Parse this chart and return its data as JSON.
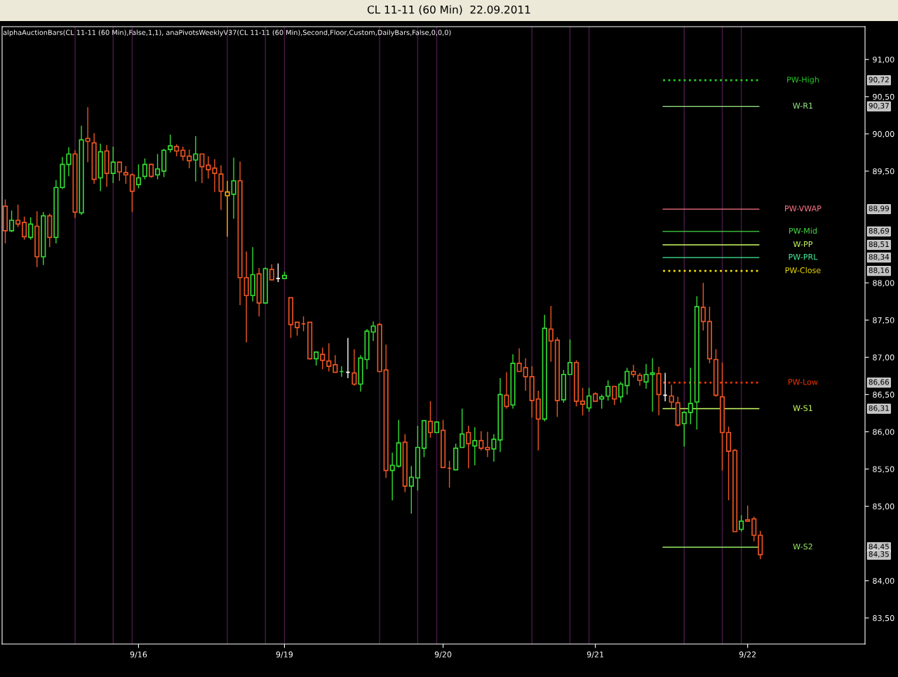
{
  "chart_data": {
    "type": "candlestick",
    "title": "CL 11-11 (60 Min)  22.09.2011",
    "subtitle": "alphaAuctionBars(CL 11-11 (60 Min),False,1,1), anaPivotsWeeklyV37(CL 11-11 (60 Min),Second,Floor,Custom,DailyBars,False,0,0,0)",
    "categories": [
      null,
      null,
      null,
      null,
      null,
      null,
      null,
      null,
      null,
      null,
      null,
      null,
      null,
      null,
      null,
      null,
      null,
      null,
      null,
      null,
      null,
      "9/16",
      null,
      null,
      null,
      null,
      null,
      null,
      null,
      null,
      null,
      null,
      null,
      null,
      null,
      null,
      null,
      null,
      null,
      null,
      null,
      null,
      null,
      null,
      "9/19",
      null,
      null,
      null,
      null,
      null,
      null,
      null,
      null,
      null,
      null,
      null,
      null,
      null,
      null,
      null,
      null,
      null,
      null,
      null,
      null,
      null,
      null,
      null,
      null,
      "9/20",
      null,
      null,
      null,
      null,
      null,
      null,
      null,
      null,
      null,
      null,
      null,
      null,
      null,
      null,
      null,
      null,
      null,
      null,
      null,
      null,
      null,
      null,
      null,
      "9/21",
      null,
      null,
      null,
      null,
      null,
      null,
      null,
      null,
      null,
      null,
      null,
      null,
      null,
      null,
      null,
      null,
      null,
      null,
      null,
      null,
      null,
      null,
      null,
      "9/22",
      null,
      null,
      null,
      null,
      null,
      null,
      null,
      null,
      null,
      null,
      null,
      null,
      null,
      null,
      null,
      null,
      null,
      null
    ],
    "annotations": [
      "90,72",
      "90,37",
      "88,99",
      "88,69",
      "88,51",
      "88,34",
      "88,16",
      "86,66",
      "86,31",
      "84,45",
      "84,35"
    ],
    "ohlc": [
      [
        89.03,
        89.12,
        88.53,
        88.7
      ],
      [
        88.7,
        88.97,
        88.68,
        88.84
      ],
      [
        88.84,
        89.05,
        88.75,
        88.79
      ],
      [
        88.81,
        88.89,
        88.58,
        88.62
      ],
      [
        88.61,
        88.88,
        88.58,
        88.79
      ],
      [
        88.76,
        88.96,
        88.21,
        88.35
      ],
      [
        88.35,
        88.95,
        88.24,
        88.9
      ],
      [
        88.9,
        88.93,
        88.48,
        88.61
      ],
      [
        88.61,
        89.38,
        88.53,
        89.28
      ],
      [
        89.28,
        89.69,
        89.26,
        89.59
      ],
      [
        89.59,
        89.82,
        89.43,
        89.73
      ],
      [
        89.73,
        89.78,
        88.87,
        88.95
      ],
      [
        88.94,
        90.11,
        88.91,
        89.92
      ],
      [
        89.94,
        90.36,
        89.62,
        89.9
      ],
      [
        89.88,
        90.01,
        89.33,
        89.39
      ],
      [
        89.41,
        89.87,
        89.23,
        89.76
      ],
      [
        89.77,
        89.85,
        89.29,
        89.47
      ],
      [
        89.47,
        89.83,
        89.34,
        89.62
      ],
      [
        89.62,
        89.63,
        89.37,
        89.49
      ],
      [
        89.48,
        89.57,
        89.33,
        89.45
      ],
      [
        89.45,
        89.47,
        88.95,
        89.23
      ],
      [
        89.32,
        89.59,
        89.27,
        89.41
      ],
      [
        89.43,
        89.67,
        89.39,
        89.59
      ],
      [
        89.59,
        89.6,
        89.41,
        89.43
      ],
      [
        89.45,
        89.73,
        89.39,
        89.53
      ],
      [
        89.5,
        89.8,
        89.42,
        89.78
      ],
      [
        89.79,
        89.99,
        89.75,
        89.84
      ],
      [
        89.83,
        89.86,
        89.7,
        89.77
      ],
      [
        89.78,
        89.83,
        89.64,
        89.7
      ],
      [
        89.7,
        89.79,
        89.54,
        89.64
      ],
      [
        89.65,
        89.97,
        89.36,
        89.73
      ],
      [
        89.73,
        89.73,
        89.34,
        89.56
      ],
      [
        89.58,
        89.7,
        89.4,
        89.52
      ],
      [
        89.54,
        89.66,
        89.22,
        89.47
      ],
      [
        89.46,
        89.58,
        88.98,
        89.23
      ],
      [
        89.22,
        89.37,
        88.62,
        89.17
      ],
      [
        89.19,
        89.68,
        88.86,
        89.37
      ],
      [
        89.37,
        89.63,
        87.7,
        88.07
      ],
      [
        88.07,
        88.42,
        87.2,
        87.83
      ],
      [
        87.83,
        88.48,
        87.75,
        88.11
      ],
      [
        88.12,
        88.2,
        87.55,
        87.73
      ],
      [
        87.73,
        88.21,
        87.72,
        88.19
      ],
      [
        88.18,
        88.25,
        88.04,
        88.04
      ],
      [
        88.06,
        88.26,
        88.01,
        88.06
      ],
      [
        88.06,
        88.15,
        88.06,
        88.1
      ],
      [
        87.8,
        87.8,
        87.26,
        87.44
      ],
      [
        87.47,
        87.48,
        87.29,
        87.4
      ],
      [
        87.45,
        87.55,
        87.35,
        87.45
      ],
      [
        87.47,
        87.47,
        86.97,
        86.98
      ],
      [
        86.98,
        87.08,
        86.89,
        87.07
      ],
      [
        87.04,
        87.13,
        86.84,
        86.96
      ],
      [
        86.95,
        87.19,
        86.81,
        86.88
      ],
      [
        86.9,
        87.03,
        86.8,
        86.8
      ],
      [
        86.81,
        86.88,
        86.74,
        86.81
      ],
      [
        86.8,
        87.26,
        86.72,
        86.8
      ],
      [
        86.79,
        87.11,
        86.62,
        86.64
      ],
      [
        86.64,
        87.03,
        86.54,
        86.99
      ],
      [
        86.97,
        87.38,
        86.84,
        87.35
      ],
      [
        87.34,
        87.48,
        87.22,
        87.42
      ],
      [
        87.44,
        87.46,
        86.8,
        86.81
      ],
      [
        86.83,
        87.17,
        85.38,
        85.48
      ],
      [
        85.48,
        85.72,
        85.08,
        85.55
      ],
      [
        85.54,
        86.16,
        85.52,
        85.85
      ],
      [
        85.86,
        85.97,
        85.19,
        85.27
      ],
      [
        85.27,
        85.54,
        84.9,
        85.39
      ],
      [
        85.38,
        86.08,
        85.21,
        85.79
      ],
      [
        85.78,
        86.15,
        85.66,
        86.15
      ],
      [
        86.14,
        86.41,
        85.92,
        85.99
      ],
      [
        85.99,
        86.14,
        85.99,
        86.13
      ],
      [
        86.02,
        86.16,
        85.52,
        85.52
      ],
      [
        85.51,
        85.61,
        85.25,
        85.51
      ],
      [
        85.49,
        85.84,
        85.48,
        85.78
      ],
      [
        85.79,
        86.31,
        85.79,
        85.97
      ],
      [
        85.99,
        86.08,
        85.51,
        85.84
      ],
      [
        85.81,
        86.06,
        85.55,
        85.88
      ],
      [
        85.88,
        86.01,
        85.75,
        85.78
      ],
      [
        85.79,
        86.0,
        85.66,
        85.76
      ],
      [
        85.77,
        85.97,
        85.6,
        85.9
      ],
      [
        85.89,
        86.72,
        85.73,
        86.5
      ],
      [
        86.49,
        86.8,
        86.31,
        86.34
      ],
      [
        86.36,
        87.04,
        86.31,
        86.92
      ],
      [
        86.92,
        87.12,
        86.81,
        86.81
      ],
      [
        86.86,
        86.99,
        86.55,
        86.74
      ],
      [
        86.74,
        86.88,
        86.19,
        86.42
      ],
      [
        86.44,
        86.55,
        85.75,
        86.17
      ],
      [
        86.17,
        87.57,
        86.14,
        87.39
      ],
      [
        87.38,
        87.69,
        86.94,
        87.22
      ],
      [
        87.23,
        87.27,
        86.2,
        86.42
      ],
      [
        86.43,
        86.83,
        86.39,
        86.77
      ],
      [
        86.77,
        87.24,
        86.77,
        86.93
      ],
      [
        86.93,
        86.96,
        86.34,
        86.41
      ],
      [
        86.41,
        86.59,
        86.22,
        86.37
      ],
      [
        86.32,
        86.59,
        86.27,
        86.48
      ],
      [
        86.51,
        86.53,
        86.41,
        86.41
      ],
      [
        86.44,
        86.5,
        86.31,
        86.47
      ],
      [
        86.48,
        86.69,
        86.42,
        86.61
      ],
      [
        86.61,
        86.62,
        86.36,
        86.44
      ],
      [
        86.47,
        86.67,
        86.39,
        86.64
      ],
      [
        86.62,
        86.86,
        86.5,
        86.81
      ],
      [
        86.81,
        86.9,
        86.73,
        86.77
      ],
      [
        86.76,
        86.79,
        86.62,
        86.69
      ],
      [
        86.67,
        86.91,
        86.58,
        86.77
      ],
      [
        86.77,
        86.99,
        86.27,
        86.79
      ],
      [
        86.78,
        86.87,
        86.22,
        86.5
      ],
      [
        86.49,
        86.79,
        86.41,
        86.49
      ],
      [
        86.48,
        86.63,
        86.31,
        86.4
      ],
      [
        86.39,
        86.47,
        86.07,
        86.09
      ],
      [
        86.11,
        86.28,
        85.8,
        86.26
      ],
      [
        86.26,
        86.86,
        86.1,
        86.38
      ],
      [
        86.4,
        87.82,
        86.03,
        87.68
      ],
      [
        87.67,
        88.0,
        87.36,
        87.48
      ],
      [
        87.48,
        87.68,
        86.92,
        86.98
      ],
      [
        86.97,
        87.11,
        86.47,
        86.49
      ],
      [
        86.47,
        86.93,
        85.48,
        85.99
      ],
      [
        85.99,
        86.07,
        85.08,
        85.74
      ],
      [
        85.75,
        85.77,
        84.66,
        84.66
      ],
      [
        84.69,
        84.88,
        84.66,
        84.8
      ],
      [
        84.82,
        85.01,
        84.8,
        84.8
      ],
      [
        84.83,
        84.86,
        84.53,
        84.61
      ],
      [
        84.61,
        84.67,
        84.29,
        84.35
      ],
      null,
      null,
      null,
      null,
      null,
      null,
      null,
      null,
      null,
      null,
      null,
      null,
      null,
      null,
      null,
      null
    ],
    "colors": [
      "#ee5522",
      "#33dd33",
      "#ee5522",
      "#ee5522",
      "#33dd33",
      "#ee5522",
      "#33dd33",
      "#ee5522",
      "#33dd33",
      "#33dd33",
      "#33dd33",
      "#ee5522",
      "#33dd33",
      "#ee5522",
      "#ee5522",
      "#33dd33",
      "#ee5522",
      "#33dd33",
      "#ee5522",
      "#ee5522",
      "#ee5522",
      "#33dd33",
      "#33dd33",
      "#ee5522",
      "#33dd33",
      "#33dd33",
      "#33dd33",
      "#ee5522",
      "#ee5522",
      "#ee5522",
      "#33dd33",
      "#ee5522",
      "#ee5522",
      "#ee5522",
      "#ee5522",
      "#ffaa00",
      "#33dd33",
      "#ee5522",
      "#ee5522",
      "#33dd33",
      "#ee5522",
      "#33dd33",
      "#ee5522",
      "#ffffff",
      "#33dd33",
      "#ee5522",
      "#ee5522",
      "#ee5522",
      "#ee5522",
      "#33dd33",
      "#ee5522",
      "#ee5522",
      "#ee5522",
      "#33dd33",
      "#ffffff",
      "#ee5522",
      "#33dd33",
      "#33dd33",
      "#33dd33",
      "#ee5522",
      "#ee5522",
      "#33dd33",
      "#33dd33",
      "#ee5522",
      "#33dd33",
      "#33dd33",
      "#33dd33",
      "#ee5522",
      "#33dd33",
      "#ee5522",
      "#ee5522",
      "#33dd33",
      "#33dd33",
      "#ee5522",
      "#33dd33",
      "#ee5522",
      "#ee5522",
      "#33dd33",
      "#33dd33",
      "#ee5522",
      "#33dd33",
      "#ee5522",
      "#ee5522",
      "#ee5522",
      "#ee5522",
      "#33dd33",
      "#ee5522",
      "#ee5522",
      "#33dd33",
      "#33dd33",
      "#ee5522",
      "#ee5522",
      "#33dd33",
      "#ee5522",
      "#33dd33",
      "#33dd33",
      "#ee5522",
      "#33dd33",
      "#33dd33",
      "#ee5522",
      "#ee5522",
      "#33dd33",
      "#33dd33",
      "#ee5522",
      "#ffffff",
      "#ee5522",
      "#ee5522",
      "#33dd33",
      "#33dd33",
      "#33dd33",
      "#ee5522",
      "#ee5522",
      "#ee5522",
      "#ee5522",
      "#ee5522",
      "#ee5522",
      "#33dd33",
      "#ee5522",
      "#ee5522",
      "#ee5522",
      null,
      null,
      null,
      null,
      null,
      null,
      null,
      null,
      null,
      null,
      null,
      null,
      null,
      null,
      null,
      null
    ],
    "ylim": [
      83.15,
      91.44
    ],
    "yticks": [
      {
        "value": 83.5,
        "label": "83,50"
      },
      {
        "value": 84,
        "label": "84,00"
      },
      {
        "value": 85,
        "label": "85,00"
      },
      {
        "value": 85.5,
        "label": "85,50"
      },
      {
        "value": 86,
        "label": "86,00"
      },
      {
        "value": 86.5,
        "label": "86,50"
      },
      {
        "value": 87,
        "label": "87,00"
      },
      {
        "value": 87.5,
        "label": "87,50"
      },
      {
        "value": 88,
        "label": "88,00"
      },
      {
        "value": 89.5,
        "label": "89,50"
      },
      {
        "value": 90,
        "label": "90,00"
      },
      {
        "value": 90.5,
        "label": "90,50"
      },
      {
        "value": 91,
        "label": "91,00"
      }
    ],
    "ref_lines": [
      {
        "axis": "y",
        "value": 90.72,
        "label": "PW-High",
        "color": "#22cc22",
        "line_style": "dotted"
      },
      {
        "axis": "y",
        "value": 90.37,
        "label": "W-R1",
        "color": "#99ee88",
        "line_style": "solid"
      },
      {
        "axis": "y",
        "value": 88.99,
        "label": "PW-VWAP",
        "color": "#ff7788",
        "line_style": "solid"
      },
      {
        "axis": "y",
        "value": 88.69,
        "label": "PW-Mid",
        "color": "#44dd44",
        "line_style": "solid"
      },
      {
        "axis": "y",
        "value": 88.51,
        "label": "W-PP",
        "color": "#ccff66",
        "line_style": "solid"
      },
      {
        "axis": "y",
        "value": 88.34,
        "label": "PW-PRL",
        "color": "#44ee99",
        "line_style": "solid"
      },
      {
        "axis": "y",
        "value": 88.16,
        "label": "PW-Close",
        "color": "#eedd00",
        "line_style": "dotted"
      },
      {
        "axis": "y",
        "value": 86.66,
        "label": "PW-Low",
        "color": "#ee3300",
        "line_style": "dotted"
      },
      {
        "axis": "y",
        "value": 86.31,
        "label": "W-S1",
        "color": "#ccff66",
        "line_style": "solid"
      },
      {
        "axis": "y",
        "value": 84.45,
        "label": "W-S2",
        "color": "#99ee66",
        "line_style": "solid"
      }
    ],
    "grid": false
  }
}
